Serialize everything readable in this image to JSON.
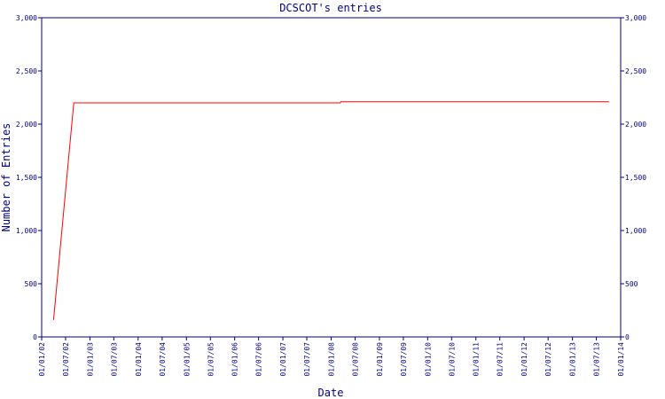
{
  "chart_data": {
    "type": "line",
    "title": "DCSCOT's entries",
    "x_label": "Date",
    "y_label": "Number of Entries",
    "x": [
      "01/04/02",
      "01/09/02",
      "10/03/08",
      "15/03/08",
      "05/10/13"
    ],
    "values": [
      160,
      2200,
      2200,
      2210,
      2210
    ],
    "color": "#ff0000",
    "axis_color": "#000080",
    "xlim": [
      "01/01/02",
      "01/01/14"
    ],
    "xticks": [
      "01/01/02",
      "01/07/02",
      "01/01/03",
      "01/07/03",
      "01/01/04",
      "01/07/04",
      "01/01/05",
      "01/07/05",
      "01/01/06",
      "01/07/06",
      "01/01/07",
      "01/07/07",
      "01/01/08",
      "01/07/08",
      "01/01/09",
      "01/07/09",
      "01/01/10",
      "01/07/10",
      "01/01/11",
      "01/07/11",
      "01/01/12",
      "01/07/12",
      "01/01/13",
      "01/07/13",
      "01/01/14"
    ],
    "ylim": [
      0,
      3000
    ],
    "yticks": [
      0,
      500,
      {
        "value": 1000,
        "label": "1,000"
      },
      {
        "value": 1500,
        "label": "1,500"
      },
      {
        "value": 2000,
        "label": "2,000"
      },
      {
        "value": 2500,
        "label": "2,500"
      },
      {
        "value": 3000,
        "label": "3,000"
      }
    ],
    "y2lim": [
      0,
      3000
    ],
    "y2ticks": [
      0,
      500,
      {
        "value": 1000,
        "label": "1,000"
      },
      {
        "value": 1500,
        "label": "1,500"
      },
      {
        "value": 2000,
        "label": "2,000"
      },
      {
        "value": 2500,
        "label": "2,500"
      },
      {
        "value": 3000,
        "label": "3,000"
      }
    ]
  }
}
